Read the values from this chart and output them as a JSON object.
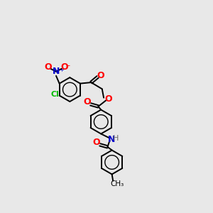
{
  "background_color": "#e8e8e8",
  "bond_color": "#000000",
  "atom_colors": {
    "O": "#ff0000",
    "N": "#0000cd",
    "Cl": "#00bb00",
    "H": "#6a6a6a",
    "C": "#000000",
    "CH3": "#000000"
  },
  "figsize": [
    3.0,
    3.0
  ],
  "dpi": 100,
  "lw": 1.4,
  "ring_r": 22
}
